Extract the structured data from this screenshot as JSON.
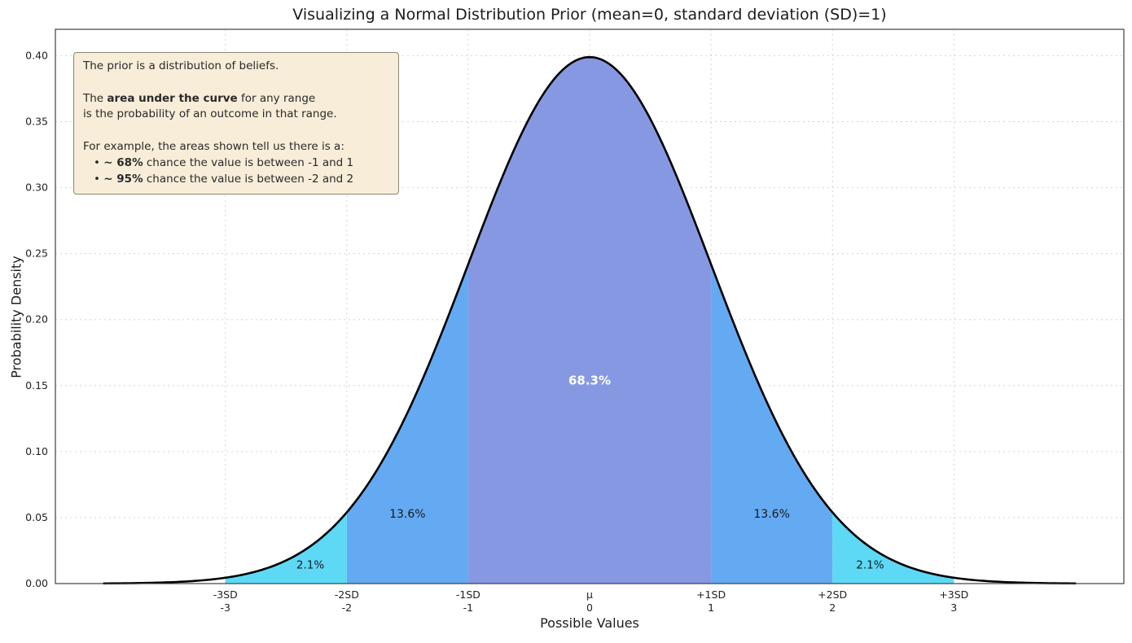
{
  "chart_data": {
    "type": "area",
    "title": "Visualizing a Normal Distribution Prior (mean=0, standard deviation (SD)=1)",
    "xlabel": "Possible Values",
    "ylabel": "Probability Density",
    "distribution": {
      "name": "normal",
      "mean": 0,
      "sd": 1
    },
    "xlim": [
      -4.4,
      4.4
    ],
    "ylim": [
      0,
      0.42
    ],
    "curve_range": [
      -4,
      4
    ],
    "grid": true,
    "curve_color": "#000000",
    "grid_color": "#cfcfcf",
    "spine_color": "#3f3f3f",
    "y_ticks": [
      {
        "v": 0.0,
        "label": "0.00"
      },
      {
        "v": 0.05,
        "label": "0.05"
      },
      {
        "v": 0.1,
        "label": "0.10"
      },
      {
        "v": 0.15,
        "label": "0.15"
      },
      {
        "v": 0.2,
        "label": "0.20"
      },
      {
        "v": 0.25,
        "label": "0.25"
      },
      {
        "v": 0.3,
        "label": "0.30"
      },
      {
        "v": 0.35,
        "label": "0.35"
      },
      {
        "v": 0.4,
        "label": "0.40"
      }
    ],
    "x_ticks": [
      {
        "v": -3,
        "top": "-3SD",
        "bottom": "-3"
      },
      {
        "v": -2,
        "top": "-2SD",
        "bottom": "-2"
      },
      {
        "v": -1,
        "top": "-1SD",
        "bottom": "-1"
      },
      {
        "v": 0,
        "top": "μ",
        "bottom": "0"
      },
      {
        "v": 1,
        "top": "+1SD",
        "bottom": "1"
      },
      {
        "v": 2,
        "top": "+2SD",
        "bottom": "2"
      },
      {
        "v": 3,
        "top": "+3SD",
        "bottom": "3"
      }
    ],
    "regions": [
      {
        "from": -1,
        "to": 1,
        "color": "#8798e3",
        "label": "68.3%",
        "label_x": 0,
        "label_y": 0.154,
        "label_color": "#ffffff",
        "label_bold": true,
        "label_size": 15
      },
      {
        "from": -2,
        "to": -1,
        "color": "#64aaf3",
        "label": "13.6%",
        "label_x": -1.5,
        "label_y": 0.053,
        "label_color": "#1a1a1a",
        "label_bold": false,
        "label_size": 14
      },
      {
        "from": 1,
        "to": 2,
        "color": "#64aaf3",
        "label": "13.6%",
        "label_x": 1.5,
        "label_y": 0.053,
        "label_color": "#1a1a1a",
        "label_bold": false,
        "label_size": 14
      },
      {
        "from": -3,
        "to": -2,
        "color": "#5dd9f6",
        "label": "2.1%",
        "label_x": -2.3,
        "label_y": 0.0145,
        "label_color": "#1a1a1a",
        "label_bold": false,
        "label_size": 13.5
      },
      {
        "from": 2,
        "to": 3,
        "color": "#5dd9f6",
        "label": "2.1%",
        "label_x": 2.31,
        "label_y": 0.0145,
        "label_color": "#1a1a1a",
        "label_bold": false,
        "label_size": 13.5
      }
    ],
    "annotation": {
      "bg": "#f7edd8",
      "border": "#8a8878",
      "lines": [
        {
          "bullet": false,
          "parts": [
            {
              "t": "The prior is a distribution of beliefs.",
              "b": false
            }
          ]
        },
        {
          "bullet": false,
          "parts": []
        },
        {
          "bullet": false,
          "parts": [
            {
              "t": "The ",
              "b": false
            },
            {
              "t": "area under the curve",
              "b": true
            },
            {
              "t": " for any range",
              "b": false
            }
          ]
        },
        {
          "bullet": false,
          "parts": [
            {
              "t": "is the probability of an outcome in that range.",
              "b": false
            }
          ]
        },
        {
          "bullet": false,
          "parts": []
        },
        {
          "bullet": false,
          "parts": [
            {
              "t": "For example, the areas shown tell us there is a:",
              "b": false
            }
          ]
        },
        {
          "bullet": true,
          "parts": [
            {
              "t": "•  ",
              "b": false
            },
            {
              "t": "~ 68%",
              "b": true
            },
            {
              "t": " chance the value is between -1 and 1",
              "b": false
            }
          ]
        },
        {
          "bullet": true,
          "parts": [
            {
              "t": "•  ",
              "b": false
            },
            {
              "t": "~ 95%",
              "b": true
            },
            {
              "t": " chance the value is between -2 and 2",
              "b": false
            }
          ]
        }
      ]
    }
  }
}
